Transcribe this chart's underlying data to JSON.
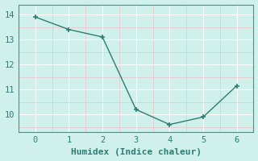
{
  "x": [
    0,
    1,
    2,
    3,
    4,
    5,
    6
  ],
  "y": [
    13.9,
    13.4,
    13.1,
    10.2,
    9.6,
    9.9,
    11.15
  ],
  "line_color": "#2d7d72",
  "marker": "+",
  "marker_size": 5,
  "bg_color": "#cff0eb",
  "plot_bg_color": "#cff0eb",
  "grid_color_major": "#ffffff",
  "grid_color_minor": "#e8c8cc",
  "spine_color": "#5a8a85",
  "tick_color": "#2d7d72",
  "xlabel": "Humidex (Indice chaleur)",
  "xlim": [
    -0.5,
    6.5
  ],
  "ylim": [
    9.3,
    14.4
  ],
  "yticks": [
    10,
    11,
    12,
    13,
    14
  ],
  "xticks": [
    0,
    1,
    2,
    3,
    4,
    5,
    6
  ],
  "xlabel_fontsize": 8,
  "tick_fontsize": 7.5,
  "linewidth": 1.0,
  "marker_linewidth": 1.2
}
